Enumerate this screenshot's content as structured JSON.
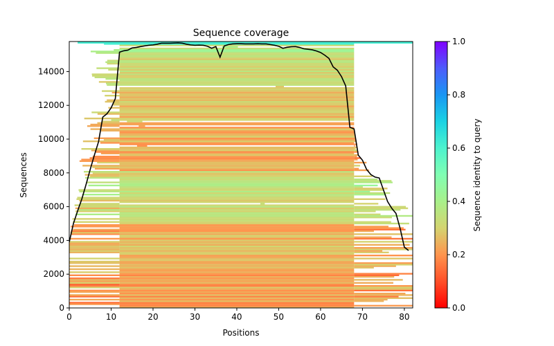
{
  "chart_data": {
    "type": "heatmap",
    "title": "Sequence coverage",
    "xlabel": "Positions",
    "ylabel": "Sequences",
    "xlim": [
      0,
      82
    ],
    "ylim": [
      0,
      15780
    ],
    "xticks": [
      0,
      10,
      20,
      30,
      40,
      50,
      60,
      70,
      80
    ],
    "xtick_labels": [
      "0",
      "10",
      "20",
      "30",
      "40",
      "50",
      "60",
      "70",
      "80"
    ],
    "yticks": [
      0,
      2000,
      4000,
      6000,
      8000,
      10000,
      12000,
      14000
    ],
    "ytick_labels": [
      "0",
      "2000",
      "4000",
      "6000",
      "8000",
      "10000",
      "12000",
      "14000"
    ],
    "grid": false,
    "colorbar": {
      "label": "Sequence identity to query",
      "range": [
        0.0,
        1.0
      ],
      "ticks": [
        0.0,
        0.2,
        0.4,
        0.6,
        0.8,
        1.0
      ],
      "tick_labels": [
        "0.0",
        "0.2",
        "0.4",
        "0.6",
        "0.8",
        "1.0"
      ],
      "colormap": "rainbow_r"
    },
    "coverage_line": {
      "name": "coverage",
      "color": "#000000",
      "x": [
        0,
        1,
        2,
        3,
        4,
        5,
        6,
        7,
        8,
        9,
        10,
        11,
        12,
        13,
        14,
        15,
        16,
        17,
        18,
        19,
        20,
        21,
        22,
        23,
        24,
        25,
        26,
        27,
        28,
        29,
        30,
        31,
        32,
        33,
        34,
        35,
        36,
        37,
        38,
        39,
        40,
        41,
        42,
        43,
        44,
        45,
        46,
        47,
        48,
        49,
        50,
        51,
        52,
        53,
        54,
        55,
        56,
        57,
        58,
        59,
        60,
        61,
        62,
        63,
        64,
        65,
        66,
        67,
        68,
        69,
        70,
        71,
        72,
        73,
        74,
        75,
        76,
        77,
        78,
        79,
        80,
        81
      ],
      "y": [
        3900,
        5000,
        5750,
        6450,
        7300,
        8200,
        9050,
        9850,
        11300,
        11500,
        11850,
        12400,
        15150,
        15230,
        15270,
        15400,
        15430,
        15480,
        15520,
        15560,
        15580,
        15620,
        15680,
        15680,
        15680,
        15690,
        15700,
        15680,
        15620,
        15580,
        15560,
        15570,
        15560,
        15500,
        15380,
        15480,
        14850,
        15520,
        15600,
        15640,
        15650,
        15650,
        15640,
        15640,
        15640,
        15650,
        15640,
        15640,
        15600,
        15560,
        15500,
        15380,
        15440,
        15470,
        15480,
        15430,
        15350,
        15320,
        15290,
        15220,
        15130,
        14970,
        14780,
        14280,
        14080,
        13700,
        13150,
        10700,
        10600,
        9050,
        8750,
        8200,
        7900,
        7750,
        7700,
        7000,
        6300,
        5900,
        5600,
        4700,
        3600,
        3400
      ]
    },
    "identity_bands": [
      {
        "y_from": 0,
        "y_to": 2000,
        "core_identity": 0.22
      },
      {
        "y_from": 2000,
        "y_to": 5000,
        "core_identity": 0.25
      },
      {
        "y_from": 5000,
        "y_to": 8200,
        "core_identity": 0.33
      },
      {
        "y_from": 8200,
        "y_to": 11000,
        "core_identity": 0.24
      },
      {
        "y_from": 11000,
        "y_to": 13000,
        "core_identity": 0.27
      },
      {
        "y_from": 13000,
        "y_to": 15000,
        "core_identity": 0.31
      },
      {
        "y_from": 15000,
        "y_to": 15600,
        "core_identity": 0.38
      },
      {
        "y_from": 15600,
        "y_to": 15780,
        "core_identity": 0.58
      }
    ],
    "core_region": [
      12,
      68
    ]
  }
}
